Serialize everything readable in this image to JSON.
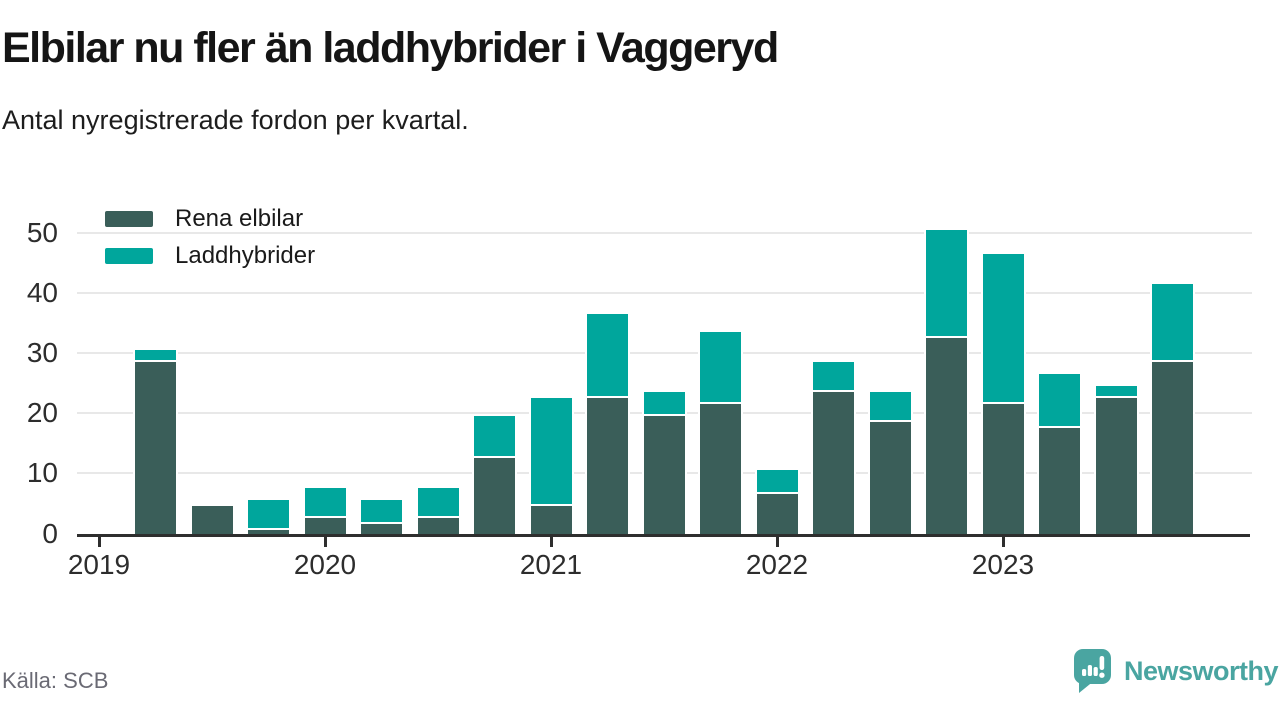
{
  "header": {
    "title": "Elbilar nu fler än laddhybrider i Vaggeryd",
    "subtitle": "Antal nyregistrerade fordon per kvartal."
  },
  "legend": {
    "items": [
      {
        "label": "Rena elbilar",
        "color": "#3a5e59"
      },
      {
        "label": "Laddhybrider",
        "color": "#00a69c"
      }
    ]
  },
  "footer": {
    "source": "Källa: SCB",
    "brand": "Newsworthy",
    "brand_color": "#4aa5a1",
    "logo_icon": "speech-bubble-bar-chart-icon"
  },
  "chart_data": {
    "type": "bar",
    "stacked": true,
    "title": "Elbilar nu fler än laddhybrider i Vaggeryd",
    "subtitle": "Antal nyregistrerade fordon per kvartal.",
    "categories": [
      "2019 K2",
      "2019 K3",
      "2019 K4",
      "2020 K1",
      "2020 K2",
      "2020 K3",
      "2020 K4",
      "2021 K1",
      "2021 K2",
      "2021 K3",
      "2021 K4",
      "2022 K1",
      "2022 K2",
      "2022 K3",
      "2022 K4",
      "2023 K1",
      "2023 K2",
      "2023 K3",
      "2023 K4"
    ],
    "series": [
      {
        "name": "Rena elbilar",
        "color": "#3a5e59",
        "values": [
          29,
          5,
          1,
          3,
          2,
          3,
          13,
          5,
          23,
          20,
          22,
          7,
          24,
          19,
          33,
          22,
          18,
          23,
          29
        ]
      },
      {
        "name": "Laddhybrider",
        "color": "#00a69c",
        "values": [
          2,
          0,
          5,
          5,
          4,
          5,
          7,
          18,
          14,
          4,
          12,
          4,
          5,
          5,
          18,
          25,
          9,
          2,
          13
        ]
      }
    ],
    "totals": [
      31,
      5,
      6,
      8,
      6,
      8,
      20,
      23,
      37,
      24,
      34,
      11,
      29,
      24,
      51,
      47,
      27,
      25,
      42
    ],
    "xlabel": "",
    "ylabel": "",
    "ylim": [
      0,
      55
    ],
    "yticks": [
      0,
      10,
      20,
      30,
      40,
      50
    ],
    "year_labels": [
      "2019",
      "2020",
      "2021",
      "2022",
      "2023"
    ],
    "grid": "horizontal",
    "legend_position": "top-left",
    "colors": {
      "grid": "#e8e8e8",
      "axis": "#2e2e2e",
      "bar_outline": "#ffffff"
    }
  }
}
